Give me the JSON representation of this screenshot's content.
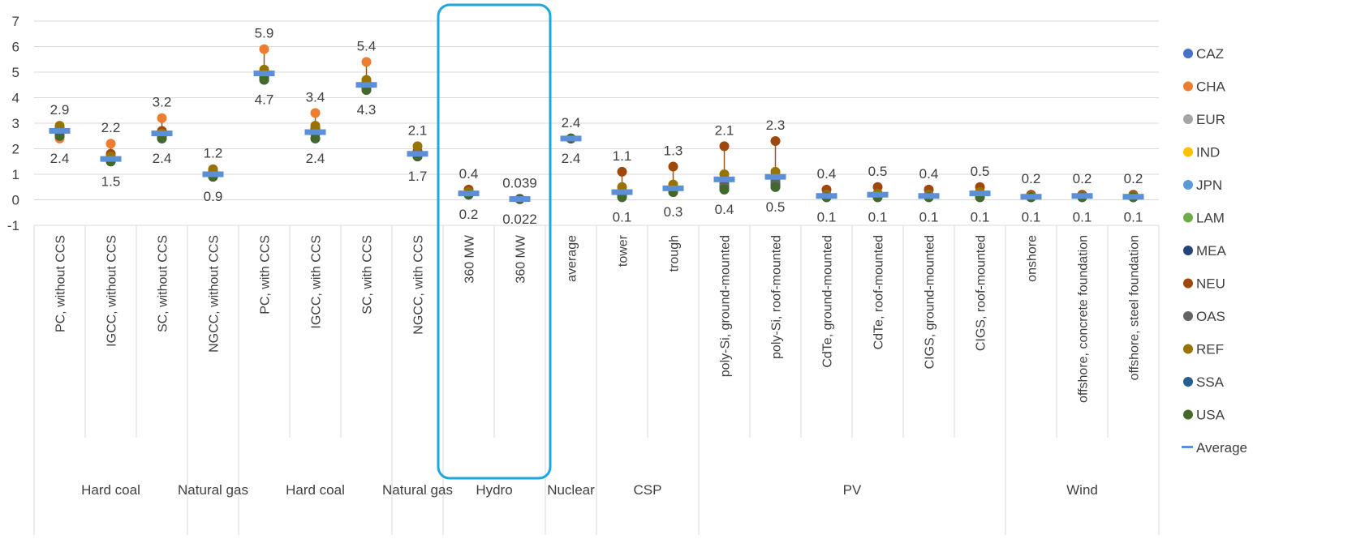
{
  "chart_data": {
    "type": "scatter",
    "ylim": [
      -1,
      7
    ],
    "yticks": [
      7,
      6,
      5,
      4,
      3,
      2,
      1,
      0,
      -1
    ],
    "grid": true,
    "legend_position": "right",
    "categories": [
      "PC, without CCS",
      "IGCC, without CCS",
      "SC, without CCS",
      "NGCC, without CCS",
      "PC, with CCS",
      "IGCC, with CCS",
      "SC, with CCS",
      "NGCC, with CCS",
      "360 MW",
      "360 MW",
      "average",
      "tower",
      "trough",
      "poly-Si, ground-mounted",
      "poly-Si, roof-mounted",
      "CdTe, ground-mounted",
      "CdTe, roof-mounted",
      "CIGS, ground-mounted",
      "CIGS, roof-mounted",
      "onshore",
      "offshore, concrete foundation",
      "offshore, steel foundation"
    ],
    "groups": [
      {
        "label": "Hard coal",
        "start": 0,
        "end": 2
      },
      {
        "label": "Natural gas",
        "start": 3,
        "end": 3
      },
      {
        "label": "Hard coal",
        "start": 4,
        "end": 6
      },
      {
        "label": "Natural gas",
        "start": 7,
        "end": 7
      },
      {
        "label": "Hydro",
        "start": 8,
        "end": 9
      },
      {
        "label": "Nuclear",
        "start": 10,
        "end": 10
      },
      {
        "label": "CSP",
        "start": 11,
        "end": 12
      },
      {
        "label": "PV",
        "start": 13,
        "end": 18
      },
      {
        "label": "Wind",
        "start": 19,
        "end": 21
      }
    ],
    "max_labels": [
      "2.9",
      "2.2",
      "3.2",
      "1.2",
      "5.9",
      "3.4",
      "5.4",
      "2.1",
      "0.4",
      "0.039",
      "2.4",
      "1.1",
      "1.3",
      "2.1",
      "2.3",
      "0.4",
      "0.5",
      "0.4",
      "0.5",
      "0.2",
      "0.2",
      "0.2"
    ],
    "min_labels": [
      "2.4",
      "1.5",
      "2.4",
      "0.9",
      "4.7",
      "2.4",
      "4.3",
      "1.7",
      "0.2",
      "0.022",
      "2.4",
      "0.1",
      "0.3",
      "0.4",
      "0.5",
      "0.1",
      "0.1",
      "0.1",
      "0.1",
      "0.1",
      "0.1",
      "0.1"
    ],
    "max": [
      2.9,
      2.2,
      3.2,
      1.2,
      5.9,
      3.4,
      5.4,
      2.1,
      0.4,
      0.039,
      2.4,
      1.1,
      1.3,
      2.1,
      2.3,
      0.4,
      0.5,
      0.4,
      0.5,
      0.2,
      0.2,
      0.2
    ],
    "min": [
      2.4,
      1.5,
      2.4,
      0.9,
      4.7,
      2.4,
      4.3,
      1.7,
      0.2,
      0.022,
      2.4,
      0.1,
      0.3,
      0.4,
      0.5,
      0.1,
      0.1,
      0.1,
      0.1,
      0.1,
      0.1,
      0.1
    ],
    "average": [
      2.7,
      1.6,
      2.6,
      1.0,
      4.95,
      2.65,
      4.5,
      1.8,
      0.25,
      0.03,
      2.4,
      0.3,
      0.45,
      0.8,
      0.9,
      0.15,
      0.2,
      0.15,
      0.25,
      0.12,
      0.15,
      0.12
    ],
    "series": [
      {
        "name": "CAZ",
        "color": "#4472c4",
        "values": [
          2.7,
          1.6,
          2.6,
          1.0,
          4.9,
          2.6,
          4.5,
          1.8,
          0.3,
          0.03,
          2.4,
          0.3,
          0.45,
          0.7,
          0.8,
          0.15,
          0.2,
          0.15,
          0.2,
          0.12,
          0.15,
          0.12
        ]
      },
      {
        "name": "CHA",
        "color": "#ed7d31",
        "values": [
          2.4,
          2.2,
          3.2,
          1.0,
          5.9,
          3.4,
          5.4,
          1.8,
          0.3,
          0.03,
          2.4,
          0.3,
          0.4,
          0.7,
          0.8,
          0.15,
          0.2,
          0.15,
          0.2,
          0.12,
          0.15,
          0.12
        ]
      },
      {
        "name": "EUR",
        "color": "#a5a5a5",
        "values": [
          2.7,
          1.7,
          2.6,
          1.0,
          5.0,
          2.7,
          4.5,
          1.8,
          0.3,
          0.03,
          2.4,
          0.3,
          0.45,
          0.8,
          0.9,
          0.2,
          0.2,
          0.15,
          0.25,
          0.12,
          0.15,
          0.12
        ]
      },
      {
        "name": "IND",
        "color": "#ffc000",
        "values": [
          2.8,
          1.7,
          2.6,
          1.1,
          5.0,
          2.8,
          4.6,
          1.9,
          0.3,
          0.03,
          2.4,
          0.4,
          0.5,
          1.0,
          1.0,
          0.2,
          0.25,
          0.2,
          0.3,
          0.15,
          0.15,
          0.12
        ]
      },
      {
        "name": "JPN",
        "color": "#5b9bd5",
        "values": [
          2.7,
          1.6,
          2.6,
          1.0,
          4.9,
          2.6,
          4.5,
          1.8,
          0.3,
          0.03,
          2.4,
          0.3,
          0.45,
          0.7,
          0.8,
          0.15,
          0.2,
          0.15,
          0.2,
          0.12,
          0.15,
          0.12
        ]
      },
      {
        "name": "LAM",
        "color": "#70ad47",
        "values": [
          2.6,
          1.6,
          2.5,
          1.0,
          4.9,
          2.6,
          4.4,
          1.8,
          0.25,
          0.03,
          2.4,
          0.25,
          0.4,
          0.6,
          0.7,
          0.15,
          0.15,
          0.15,
          0.2,
          0.12,
          0.15,
          0.12
        ]
      },
      {
        "name": "MEA",
        "color": "#264478",
        "values": [
          2.6,
          1.6,
          2.5,
          1.0,
          4.8,
          2.6,
          4.4,
          1.7,
          0.25,
          0.03,
          2.4,
          0.2,
          0.35,
          0.5,
          0.6,
          0.12,
          0.15,
          0.12,
          0.15,
          0.1,
          0.12,
          0.1
        ]
      },
      {
        "name": "NEU",
        "color": "#9e480e",
        "values": [
          2.8,
          1.8,
          2.7,
          1.1,
          5.0,
          2.8,
          4.6,
          1.9,
          0.4,
          0.039,
          2.4,
          1.1,
          1.3,
          2.1,
          2.3,
          0.4,
          0.5,
          0.4,
          0.5,
          0.2,
          0.2,
          0.2
        ]
      },
      {
        "name": "OAS",
        "color": "#636363",
        "values": [
          2.6,
          1.6,
          2.5,
          1.0,
          4.9,
          2.6,
          4.5,
          1.8,
          0.25,
          0.03,
          2.4,
          0.3,
          0.4,
          0.6,
          0.7,
          0.15,
          0.15,
          0.15,
          0.2,
          0.12,
          0.15,
          0.12
        ]
      },
      {
        "name": "REF",
        "color": "#997300",
        "values": [
          2.9,
          1.7,
          2.6,
          1.2,
          5.1,
          2.9,
          4.7,
          2.1,
          0.3,
          0.03,
          2.4,
          0.5,
          0.6,
          1.0,
          1.1,
          0.2,
          0.25,
          0.2,
          0.3,
          0.15,
          0.15,
          0.15
        ]
      },
      {
        "name": "SSA",
        "color": "#255e91",
        "values": [
          2.5,
          1.5,
          2.4,
          0.9,
          4.7,
          2.4,
          4.3,
          1.7,
          0.2,
          0.022,
          2.4,
          0.15,
          0.3,
          0.4,
          0.5,
          0.1,
          0.1,
          0.1,
          0.1,
          0.1,
          0.1,
          0.1
        ]
      },
      {
        "name": "USA",
        "color": "#43682b",
        "values": [
          2.5,
          1.5,
          2.4,
          0.9,
          4.7,
          2.4,
          4.3,
          1.7,
          0.2,
          0.022,
          2.4,
          0.1,
          0.3,
          0.4,
          0.5,
          0.1,
          0.1,
          0.1,
          0.1,
          0.1,
          0.1,
          0.1
        ]
      }
    ],
    "average_legend": "Average",
    "average_color": "#5b8fd6",
    "highlight_color": "#1ba7e0"
  }
}
